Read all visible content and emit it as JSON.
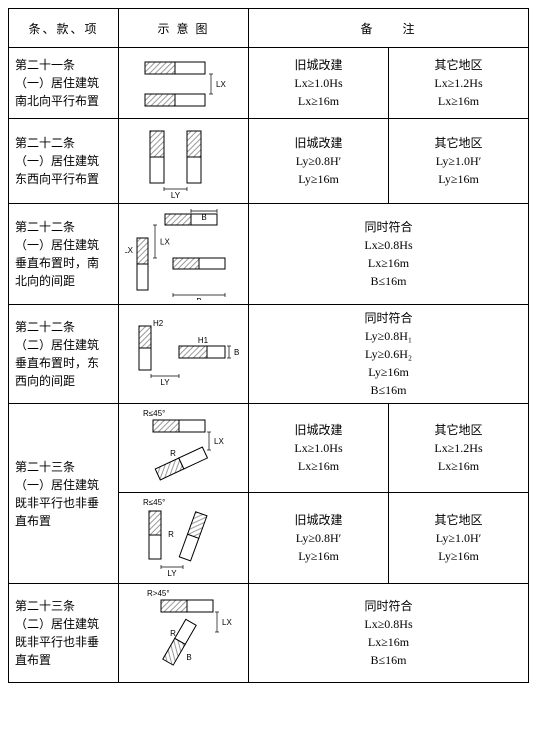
{
  "header": {
    "col1": "条、款、项",
    "col2": "示 意 图",
    "col3": "备　　注"
  },
  "rows": [
    {
      "article": "第二十一条\n（一）居住建筑\n南北向平行布置",
      "diagram": "h-parallel-lx",
      "notes": [
        {
          "title": "旧城改建",
          "lines": [
            "Lx≥1.0Hs",
            "Lx≥16m"
          ]
        },
        {
          "title": "其它地区",
          "lines": [
            "Lx≥1.2Hs",
            "Lx≥16m"
          ]
        }
      ]
    },
    {
      "article": "第二十二条\n（一）居住建筑\n东西向平行布置",
      "diagram": "v-parallel-ly",
      "notes": [
        {
          "title": "旧城改建",
          "lines": [
            "Ly≥0.8H′",
            "Ly≥16m"
          ]
        },
        {
          "title": "其它地区",
          "lines": [
            "Ly≥1.0H′",
            "Ly≥16m"
          ]
        }
      ]
    },
    {
      "article": "第二十二条\n（一）居住建筑\n垂直布置时，南\n北向的间距",
      "diagram": "perp-nb",
      "notes": [
        {
          "title": "同时符合",
          "lines": [
            "Lx≥0.8Hs",
            "Lx≥16m",
            "B≤16m"
          ]
        }
      ]
    },
    {
      "article": "第二十二条\n（二）居住建筑\n垂直布置时，东\n西向的间距",
      "diagram": "perp-ew",
      "notes": [
        {
          "title": "同时符合",
          "lines": [
            "Ly≥0.8H₁",
            "Ly≥0.6H₂",
            "Ly≥16m",
            "B≤16m"
          ]
        }
      ]
    },
    {
      "article": "第二十三条\n（一）居住建筑\n既非平行也非垂\n直布置",
      "diagram": "angled-1",
      "label": "R≤45°",
      "notes": [
        {
          "title": "旧城改建",
          "lines": [
            "Lx≥1.0Hs",
            "Lx≥16m"
          ]
        },
        {
          "title": "其它地区",
          "lines": [
            "Lx≥1.2Hs",
            "Lx≥16m"
          ]
        }
      ]
    },
    {
      "article": "",
      "diagram": "angled-2",
      "label": "R≤45°",
      "notes": [
        {
          "title": "旧城改建",
          "lines": [
            "Ly≥0.8H′",
            "Ly≥16m"
          ]
        },
        {
          "title": "其它地区",
          "lines": [
            "Ly≥1.0H′",
            "Ly≥16m"
          ]
        }
      ]
    },
    {
      "article": "第二十三条\n（二）居住建筑\n既非平行也非垂\n直布置",
      "diagram": "angled-3",
      "label": "R>45°",
      "notes": [
        {
          "title": "同时符合",
          "lines": [
            "Lx≥0.8Hs",
            "Lx≥16m",
            "B≤16m"
          ]
        }
      ]
    }
  ],
  "style": {
    "hatch": "#9a9a9a",
    "stroke": "#000000",
    "bg": "#ffffff",
    "font_small": 9
  }
}
